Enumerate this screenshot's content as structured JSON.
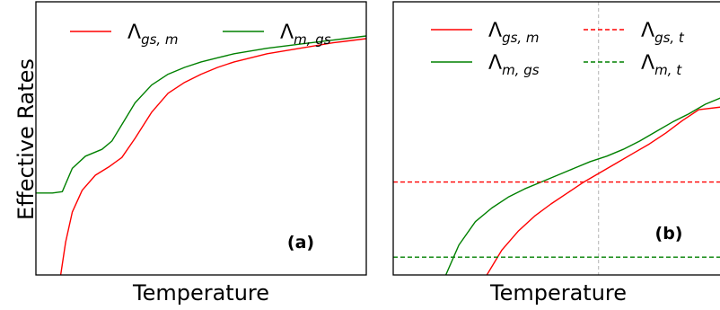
{
  "figure": {
    "ylabel": "Effective Rates"
  },
  "chart_data": [
    {
      "type": "line",
      "panel_label": "(a)",
      "xlabel": "Temperature",
      "ylabel": "Effective Rates",
      "xticks": [],
      "yticks": [],
      "xlim": [
        0,
        10
      ],
      "ylim": [
        0,
        10
      ],
      "grid": false,
      "legend": {
        "position": "top",
        "columns": 2
      },
      "series": [
        {
          "name": "Λgs,m",
          "symbol": "Λ",
          "subscript": "gs, m",
          "color": "#ff0000",
          "style": "solid",
          "x": [
            0.75,
            0.9,
            1.1,
            1.4,
            1.8,
            2.2,
            2.6,
            3.0,
            3.5,
            4.0,
            4.5,
            5.0,
            5.5,
            6.0,
            7.0,
            8.0,
            9.0,
            10.0
          ],
          "y": [
            0.0,
            1.2,
            2.3,
            3.1,
            3.65,
            3.95,
            4.3,
            5.0,
            5.95,
            6.65,
            7.05,
            7.35,
            7.6,
            7.8,
            8.1,
            8.3,
            8.5,
            8.65
          ]
        },
        {
          "name": "Λm,gs",
          "symbol": "Λ",
          "subscript": "m, gs",
          "color": "#008000",
          "style": "solid",
          "x": [
            0.0,
            0.5,
            0.8,
            1.1,
            1.5,
            2.0,
            2.3,
            2.6,
            3.0,
            3.5,
            4.0,
            4.5,
            5.0,
            5.5,
            6.0,
            7.0,
            8.0,
            9.0,
            10.0
          ],
          "y": [
            3.0,
            3.0,
            3.05,
            3.9,
            4.35,
            4.6,
            4.9,
            5.5,
            6.3,
            6.95,
            7.35,
            7.6,
            7.8,
            7.95,
            8.1,
            8.3,
            8.45,
            8.6,
            8.75
          ]
        }
      ]
    },
    {
      "type": "line",
      "panel_label": "(b)",
      "xlabel": "Temperature",
      "xticks": [],
      "yticks": [],
      "xlim": [
        0,
        10
      ],
      "ylim": [
        0,
        10
      ],
      "grid": false,
      "vline": {
        "x": 6.25,
        "color": "#aaaaaa",
        "style": "dashed"
      },
      "legend": {
        "position": "top",
        "columns": 2
      },
      "series": [
        {
          "name": "Λgs,m",
          "symbol": "Λ",
          "subscript": "gs, m",
          "color": "#ff0000",
          "style": "solid",
          "x": [
            2.85,
            3.3,
            3.8,
            4.3,
            4.8,
            5.3,
            5.8,
            6.3,
            6.8,
            7.3,
            7.8,
            8.3,
            8.8,
            9.3,
            10.0
          ],
          "y": [
            0.0,
            0.9,
            1.6,
            2.15,
            2.6,
            3.0,
            3.4,
            3.75,
            4.1,
            4.45,
            4.8,
            5.2,
            5.65,
            6.05,
            6.15
          ]
        },
        {
          "name": "Λm,gs",
          "symbol": "Λ",
          "subscript": "m, gs",
          "color": "#008000",
          "style": "solid",
          "x": [
            1.6,
            2.0,
            2.5,
            3.0,
            3.5,
            4.0,
            4.5,
            5.0,
            5.5,
            6.0,
            6.5,
            7.0,
            7.5,
            8.0,
            8.5,
            9.0,
            9.5,
            10.0
          ],
          "y": [
            0.0,
            1.1,
            1.95,
            2.45,
            2.85,
            3.15,
            3.4,
            3.65,
            3.9,
            4.15,
            4.35,
            4.6,
            4.9,
            5.25,
            5.6,
            5.9,
            6.25,
            6.5
          ]
        },
        {
          "name": "Λgs,t",
          "symbol": "Λ",
          "subscript": "gs, t",
          "color": "#ff0000",
          "style": "dashed",
          "x": [
            0.0,
            10.0
          ],
          "y": [
            3.4,
            3.4
          ]
        },
        {
          "name": "Λm,t",
          "symbol": "Λ",
          "subscript": "m, t",
          "color": "#008000",
          "style": "dashed",
          "x": [
            0.0,
            10.0
          ],
          "y": [
            0.65,
            0.65
          ]
        }
      ]
    }
  ]
}
